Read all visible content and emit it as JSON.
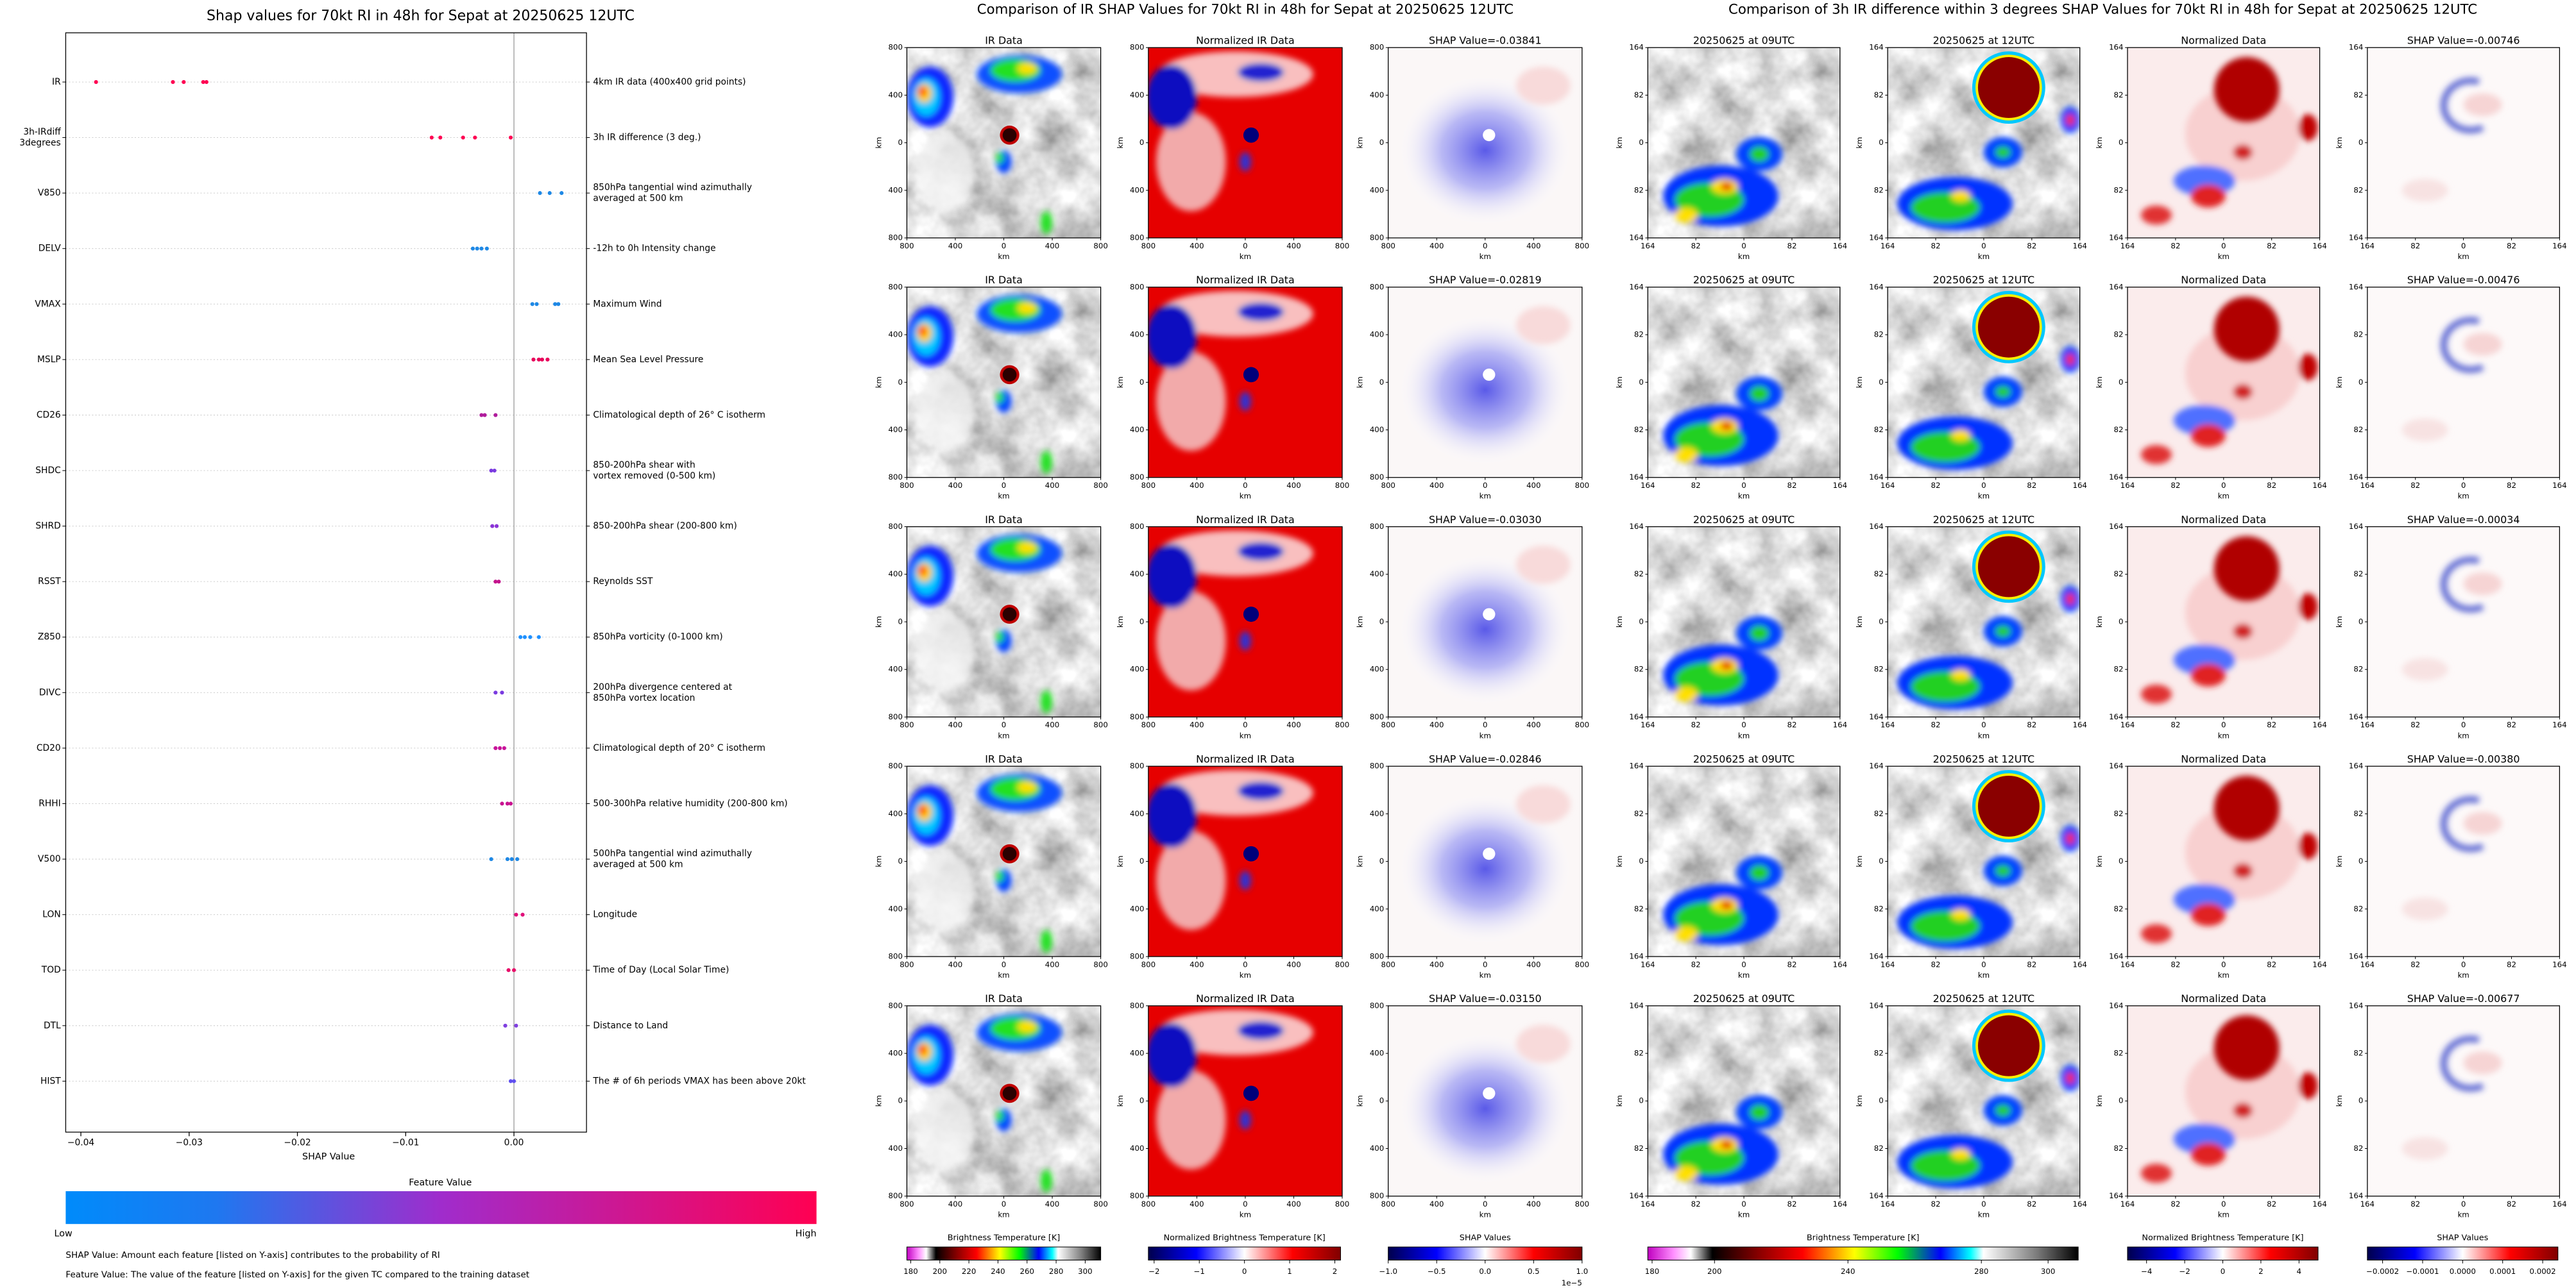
{
  "chart_data": {
    "type": "strip",
    "title": "Shap values for 70kt RI in 48h for Sepat at 20250625 12UTC",
    "xlabel": "SHAP Value",
    "xlim": [
      -0.0414,
      0.0067
    ],
    "xticks": [
      {
        "value": -0.04,
        "label": "−0.04"
      },
      {
        "value": -0.03,
        "label": "−0.03"
      },
      {
        "value": -0.02,
        "label": "−0.02"
      },
      {
        "value": -0.01,
        "label": "−0.01"
      },
      {
        "value": 0,
        "label": "0.00"
      }
    ],
    "grid": true,
    "series": [
      {
        "name": [
          "IR"
        ],
        "description": [
          "4km IR data (400x400 grid points)"
        ],
        "color": "#ff0052",
        "values": [
          -0.0386,
          -0.0315,
          -0.0305,
          -0.0287,
          -0.0284
        ]
      },
      {
        "name": [
          "3h-IRdiff",
          "3degrees"
        ],
        "description": [
          "3h IR difference (3 deg.)"
        ],
        "color": "#ff0052",
        "values": [
          -0.0076,
          -0.0068,
          -0.0047,
          -0.0036,
          -0.0003
        ]
      },
      {
        "name": [
          "V850"
        ],
        "description": [
          "850hPa tangential wind azimuthally",
          "averaged at 500 km"
        ],
        "color": "#1e88e5",
        "values": [
          0.0024,
          0.0033,
          0.0044
        ]
      },
      {
        "name": [
          "DELV"
        ],
        "description": [
          "-12h to 0h Intensity change"
        ],
        "color": "#1e88e5",
        "values": [
          -0.0038,
          -0.0034,
          -0.003,
          -0.0025
        ]
      },
      {
        "name": [
          "VMAX"
        ],
        "description": [
          "Maximum Wind"
        ],
        "color": "#1e88e5",
        "values": [
          0.0017,
          0.0021,
          0.0038,
          0.0041
        ]
      },
      {
        "name": [
          "MSLP"
        ],
        "description": [
          "Mean Sea Level Pressure"
        ],
        "color": "#e8005a",
        "values": [
          0.0018,
          0.0023,
          0.0026,
          0.0031
        ]
      },
      {
        "name": [
          "CD26"
        ],
        "description": [
          "Climatological depth of 26° C isotherm"
        ],
        "color": "#b01c9c",
        "values": [
          -0.003,
          -0.0027,
          -0.0017
        ]
      },
      {
        "name": [
          "SHDC"
        ],
        "description": [
          "850-200hPa shear with",
          "vortex removed (0-500 km)"
        ],
        "color": "#7a3ae0",
        "values": [
          -0.0021,
          -0.0018
        ]
      },
      {
        "name": [
          "SHRD"
        ],
        "description": [
          "850-200hPa shear (200-800 km)"
        ],
        "color": "#8a34d6",
        "values": [
          -0.002,
          -0.0016
        ]
      },
      {
        "name": [
          "RSST"
        ],
        "description": [
          "Reynolds SST"
        ],
        "color": "#c4128c",
        "values": [
          -0.0017,
          -0.0014
        ]
      },
      {
        "name": [
          "Z850"
        ],
        "description": [
          "850hPa vorticity (0-1000 km)"
        ],
        "color": "#1e90ff",
        "values": [
          0.0006,
          0.001,
          0.0015,
          0.0023
        ]
      },
      {
        "name": [
          "DIVC"
        ],
        "description": [
          "200hPa divergence centered at",
          "850hPa vortex location"
        ],
        "color": "#7a3ae0",
        "values": [
          -0.0017,
          -0.0011
        ]
      },
      {
        "name": [
          "CD20"
        ],
        "description": [
          "Climatological depth of 20° C isotherm"
        ],
        "color": "#c8129a",
        "values": [
          -0.0017,
          -0.0013,
          -0.0009
        ]
      },
      {
        "name": [
          "RHHI"
        ],
        "description": [
          "500-300hPa relative humidity (200-800 km)"
        ],
        "color": "#c81290",
        "values": [
          -0.0011,
          -0.0006,
          -0.0003
        ]
      },
      {
        "name": [
          "V500"
        ],
        "description": [
          "500hPa tangential wind azimuthally",
          "averaged at 500 km"
        ],
        "color": "#1e88e5",
        "values": [
          -0.0021,
          -0.0006,
          -0.0002,
          0.0003
        ]
      },
      {
        "name": [
          "LON"
        ],
        "description": [
          "Longitude"
        ],
        "color": "#e0107a",
        "values": [
          0.0002,
          0.0008
        ]
      },
      {
        "name": [
          "TOD"
        ],
        "description": [
          "Time of Day (Local Solar Time)"
        ],
        "color": "#e8106a",
        "values": [
          -0.0005,
          0
        ]
      },
      {
        "name": [
          "DTL"
        ],
        "description": [
          "Distance to Land"
        ],
        "color": "#8040e0",
        "values": [
          -0.0008,
          0.0002
        ]
      },
      {
        "name": [
          "HIST"
        ],
        "description": [
          "The # of 6h periods VMAX has been above 20kt"
        ],
        "color": "#6050f0",
        "values": [
          -0.0003,
          0
        ]
      }
    ],
    "colorbar": {
      "title": "Feature Value",
      "low": "Low",
      "high": "High"
    },
    "notes": [
      "SHAP Value: Amount each feature [listed on Y-axis] contributes to the probability of RI",
      "Feature Value: The value of the feature [listed on Y-axis] for the given TC compared to the training dataset"
    ]
  },
  "ir_comparison": {
    "title": "Comparison of IR SHAP Values for 70kt RI in 48h for Sepat at 20250625 12UTC",
    "rows": [
      {
        "titles": [
          "IR Data",
          "Normalized IR Data",
          "SHAP Value=-0.03841"
        ]
      },
      {
        "titles": [
          "IR Data",
          "Normalized IR Data",
          "SHAP Value=-0.02819"
        ]
      },
      {
        "titles": [
          "IR Data",
          "Normalized IR Data",
          "SHAP Value=-0.03030"
        ]
      },
      {
        "titles": [
          "IR Data",
          "Normalized IR Data",
          "SHAP Value=-0.02846"
        ]
      },
      {
        "titles": [
          "IR Data",
          "Normalized IR Data",
          "SHAP Value=-0.03150"
        ]
      }
    ],
    "tick_labels": [
      "800",
      "400",
      "0",
      "400",
      "800"
    ],
    "axis_label": "km",
    "colorbars": [
      {
        "label": "Brightness Temperature [K]",
        "ticks": [
          "180",
          "200",
          "220",
          "240",
          "260",
          "280",
          "300"
        ]
      },
      {
        "label": "Normalized Brightness Temperature [K]",
        "ticks": [
          "−2",
          "−1",
          "0",
          "1",
          "2"
        ]
      },
      {
        "label": "SHAP Values",
        "ticks": [
          "−1.0",
          "−0.5",
          "0.0",
          "0.5",
          "1.0"
        ],
        "offset": "1e−5"
      }
    ]
  },
  "diff_comparison": {
    "title": "Comparison of 3h IR difference within 3 degrees SHAP Values for 70kt RI in 48h for Sepat at 20250625 12UTC",
    "rows": [
      {
        "titles": [
          "20250625 at 09UTC",
          "20250625 at 12UTC",
          "Normalized Data",
          "SHAP Value=-0.00746"
        ]
      },
      {
        "titles": [
          "20250625 at 09UTC",
          "20250625 at 12UTC",
          "Normalized Data",
          "SHAP Value=-0.00476"
        ]
      },
      {
        "titles": [
          "20250625 at 09UTC",
          "20250625 at 12UTC",
          "Normalized Data",
          "SHAP Value=-0.00034"
        ]
      },
      {
        "titles": [
          "20250625 at 09UTC",
          "20250625 at 12UTC",
          "Normalized Data",
          "SHAP Value=-0.00380"
        ]
      },
      {
        "titles": [
          "20250625 at 09UTC",
          "20250625 at 12UTC",
          "Normalized Data",
          "SHAP Value=-0.00677"
        ]
      }
    ],
    "tick_labels": [
      "164",
      "82",
      "0",
      "82",
      "164"
    ],
    "axis_label": "km",
    "colorbars": [
      {
        "label": "Brightness Temperature [K]",
        "ticks": [
          "180",
          "200",
          "240",
          "280",
          "300"
        ]
      },
      {
        "label": "Normalized Brightness Temperature [K]",
        "ticks": [
          "−4",
          "−2",
          "0",
          "2",
          "4"
        ]
      },
      {
        "label": "SHAP Values",
        "ticks": [
          "−0.0002",
          "−0.0001",
          "0.0000",
          "0.0001",
          "0.0002"
        ]
      }
    ]
  }
}
